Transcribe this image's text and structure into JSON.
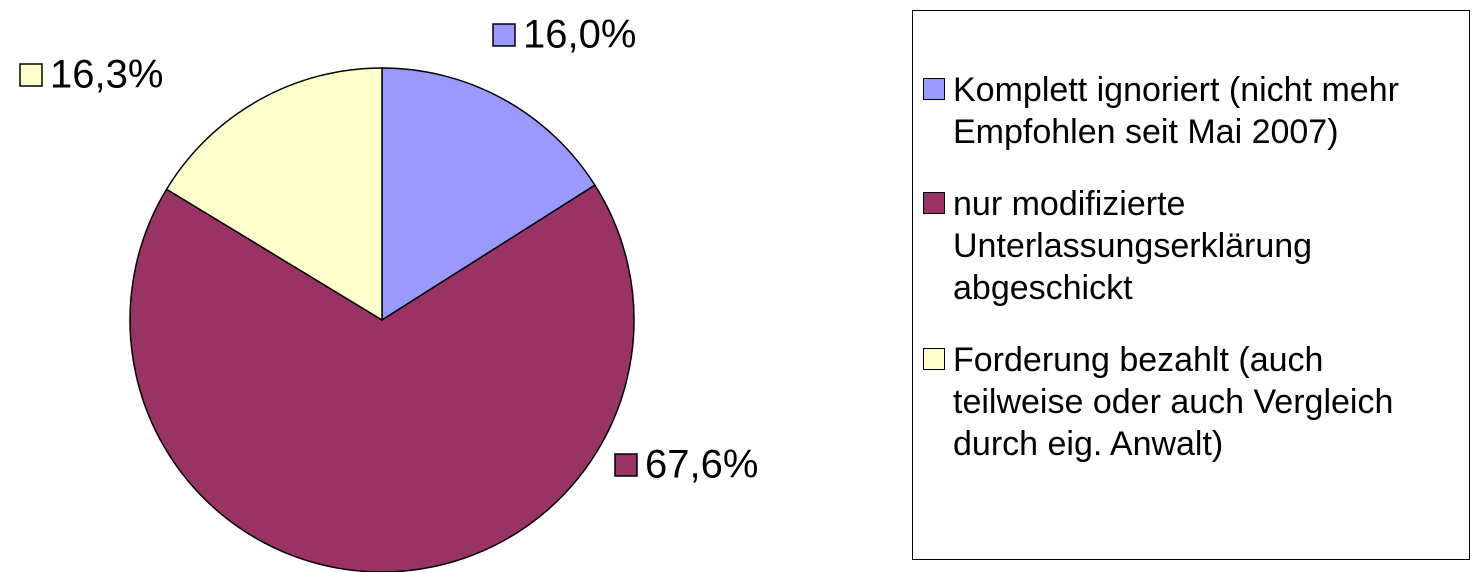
{
  "chart_data": {
    "type": "pie",
    "categories": [
      "Komplett ignoriert (nicht mehr Empfohlen seit Mai 2007)",
      "nur modifizierte Unterlassungserklärung abgeschickt",
      "Forderung bezahlt (auch teilweise oder auch Vergleich durch eig. Anwalt)"
    ],
    "values": [
      16.0,
      67.6,
      16.3
    ],
    "value_labels": [
      "16,0%",
      "67,6%",
      "16,3%"
    ],
    "colors": [
      "#9999ff",
      "#993366",
      "#ffffcc"
    ],
    "legend": "right"
  }
}
